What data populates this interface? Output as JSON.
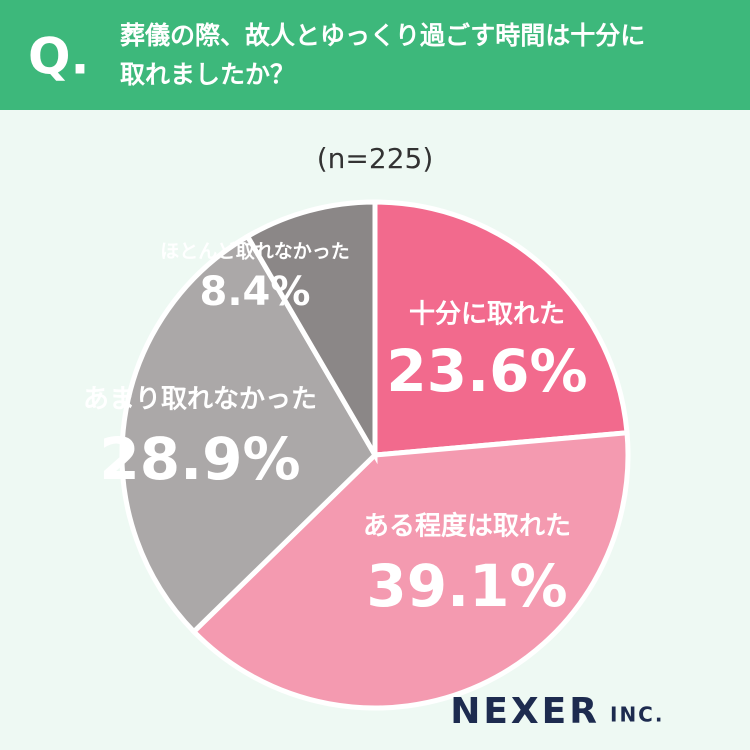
{
  "header": {
    "mark": "Q.",
    "question": [
      "葬儀の際、故人とゆっくり過ごす時間は十分に",
      "取れましたか？"
    ]
  },
  "chart_data": {
    "type": "pie",
    "subtitle": "(n=225)",
    "categories": [
      "十分に取れた",
      "ある程度は取れた",
      "あまり取れなかった",
      "ほとんど取れなかった"
    ],
    "values": [
      23.6,
      39.1,
      28.9,
      8.4
    ],
    "value_labels": [
      "23.6%",
      "39.1%",
      "28.9%",
      "8.4%"
    ],
    "colors": [
      "#f26a8d",
      "#f49ab0",
      "#aba8a8",
      "#8b8787"
    ]
  },
  "logo": {
    "name": "NEXER",
    "suffix": "INC."
  }
}
